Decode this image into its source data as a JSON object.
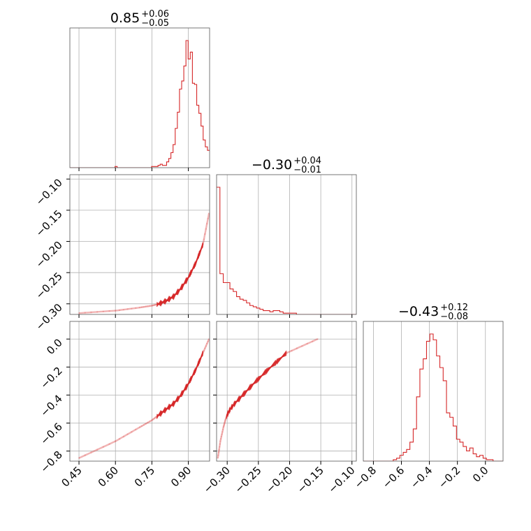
{
  "colors": {
    "series": "#d62728",
    "grid": "#b0b0b0",
    "frame": "#555555"
  },
  "chart_data": {
    "type": "corner",
    "parameters": [
      {
        "median": "0.85",
        "plus": "+0.06",
        "minus": "−0.05"
      },
      {
        "median": "−0.30",
        "plus": "+0.04",
        "minus": "−0.01"
      },
      {
        "median": "−0.43",
        "plus": "+0.12",
        "minus": "−0.08"
      }
    ],
    "axes": [
      {
        "range": [
          0.4125,
          0.9875
        ],
        "ticks": [
          0.45,
          0.6,
          0.75,
          0.9
        ],
        "tick_labels": [
          "0.45",
          "0.60",
          "0.75",
          "0.90"
        ]
      },
      {
        "range": [
          -0.317,
          -0.093
        ],
        "ticks": [
          -0.3,
          -0.25,
          -0.2,
          -0.15,
          -0.1
        ],
        "tick_labels": [
          "−0.30",
          "−0.25",
          "−0.20",
          "−0.15",
          "−0.10"
        ]
      },
      {
        "range": [
          -0.872,
          0.126
        ],
        "ticks": [
          -0.8,
          -0.6,
          -0.4,
          -0.2,
          0.0
        ],
        "tick_labels": [
          "−0.8",
          "−0.6",
          "−0.4",
          "−0.2",
          "0.0"
        ]
      }
    ],
    "histograms": [
      {
        "param": 0,
        "bin_edges_range": [
          0.4125,
          0.9875
        ],
        "counts": [
          0,
          0,
          0,
          0,
          0,
          0,
          0,
          0,
          0,
          0,
          0,
          0,
          0,
          0,
          0,
          0,
          0,
          0,
          0,
          0,
          0,
          1,
          0,
          0,
          0,
          0,
          0,
          0,
          0,
          0,
          0,
          0,
          0,
          0,
          0,
          0,
          0,
          0,
          1,
          1,
          1,
          2,
          3,
          2,
          2,
          5,
          8,
          13,
          20,
          34,
          48,
          68,
          75,
          88,
          110,
          94,
          100,
          73,
          72,
          54,
          47,
          36,
          24,
          18,
          15
        ]
      },
      {
        "param": 1,
        "bin_edges_range": [
          -0.317,
          -0.093
        ],
        "counts": [
          100,
          32,
          25,
          25,
          20,
          18,
          14,
          12,
          11,
          9,
          7,
          6,
          5,
          4,
          3,
          3,
          2,
          3,
          3,
          2,
          1,
          1,
          1,
          1,
          0,
          0,
          0,
          0,
          0,
          0,
          0,
          0,
          0,
          0,
          0,
          0,
          0,
          0,
          0,
          0,
          0,
          0
        ]
      },
      {
        "param": 2,
        "bin_edges_range": [
          -0.872,
          0.126
        ],
        "counts": [
          0,
          0,
          0,
          0,
          0,
          0,
          0,
          0,
          0,
          1,
          2,
          4,
          6,
          8,
          13,
          22,
          44,
          63,
          70,
          82,
          87,
          83,
          72,
          64,
          55,
          33,
          30,
          24,
          15,
          13,
          10,
          7,
          9,
          5,
          3,
          4,
          2,
          1,
          1,
          0,
          0,
          0
        ]
      }
    ],
    "relation": {
      "description_points": [
        [
          0.45,
          -0.315,
          -0.85
        ],
        [
          0.6,
          -0.311,
          -0.73
        ],
        [
          0.7,
          -0.306,
          -0.63
        ],
        [
          0.75,
          -0.303,
          -0.58
        ],
        [
          0.78,
          -0.3,
          -0.54
        ],
        [
          0.81,
          -0.295,
          -0.5
        ],
        [
          0.84,
          -0.288,
          -0.46
        ],
        [
          0.87,
          -0.275,
          -0.4
        ],
        [
          0.9,
          -0.258,
          -0.32
        ],
        [
          0.93,
          -0.235,
          -0.22
        ],
        [
          0.96,
          -0.205,
          -0.1
        ],
        [
          0.985,
          -0.155,
          0.0
        ]
      ]
    }
  }
}
